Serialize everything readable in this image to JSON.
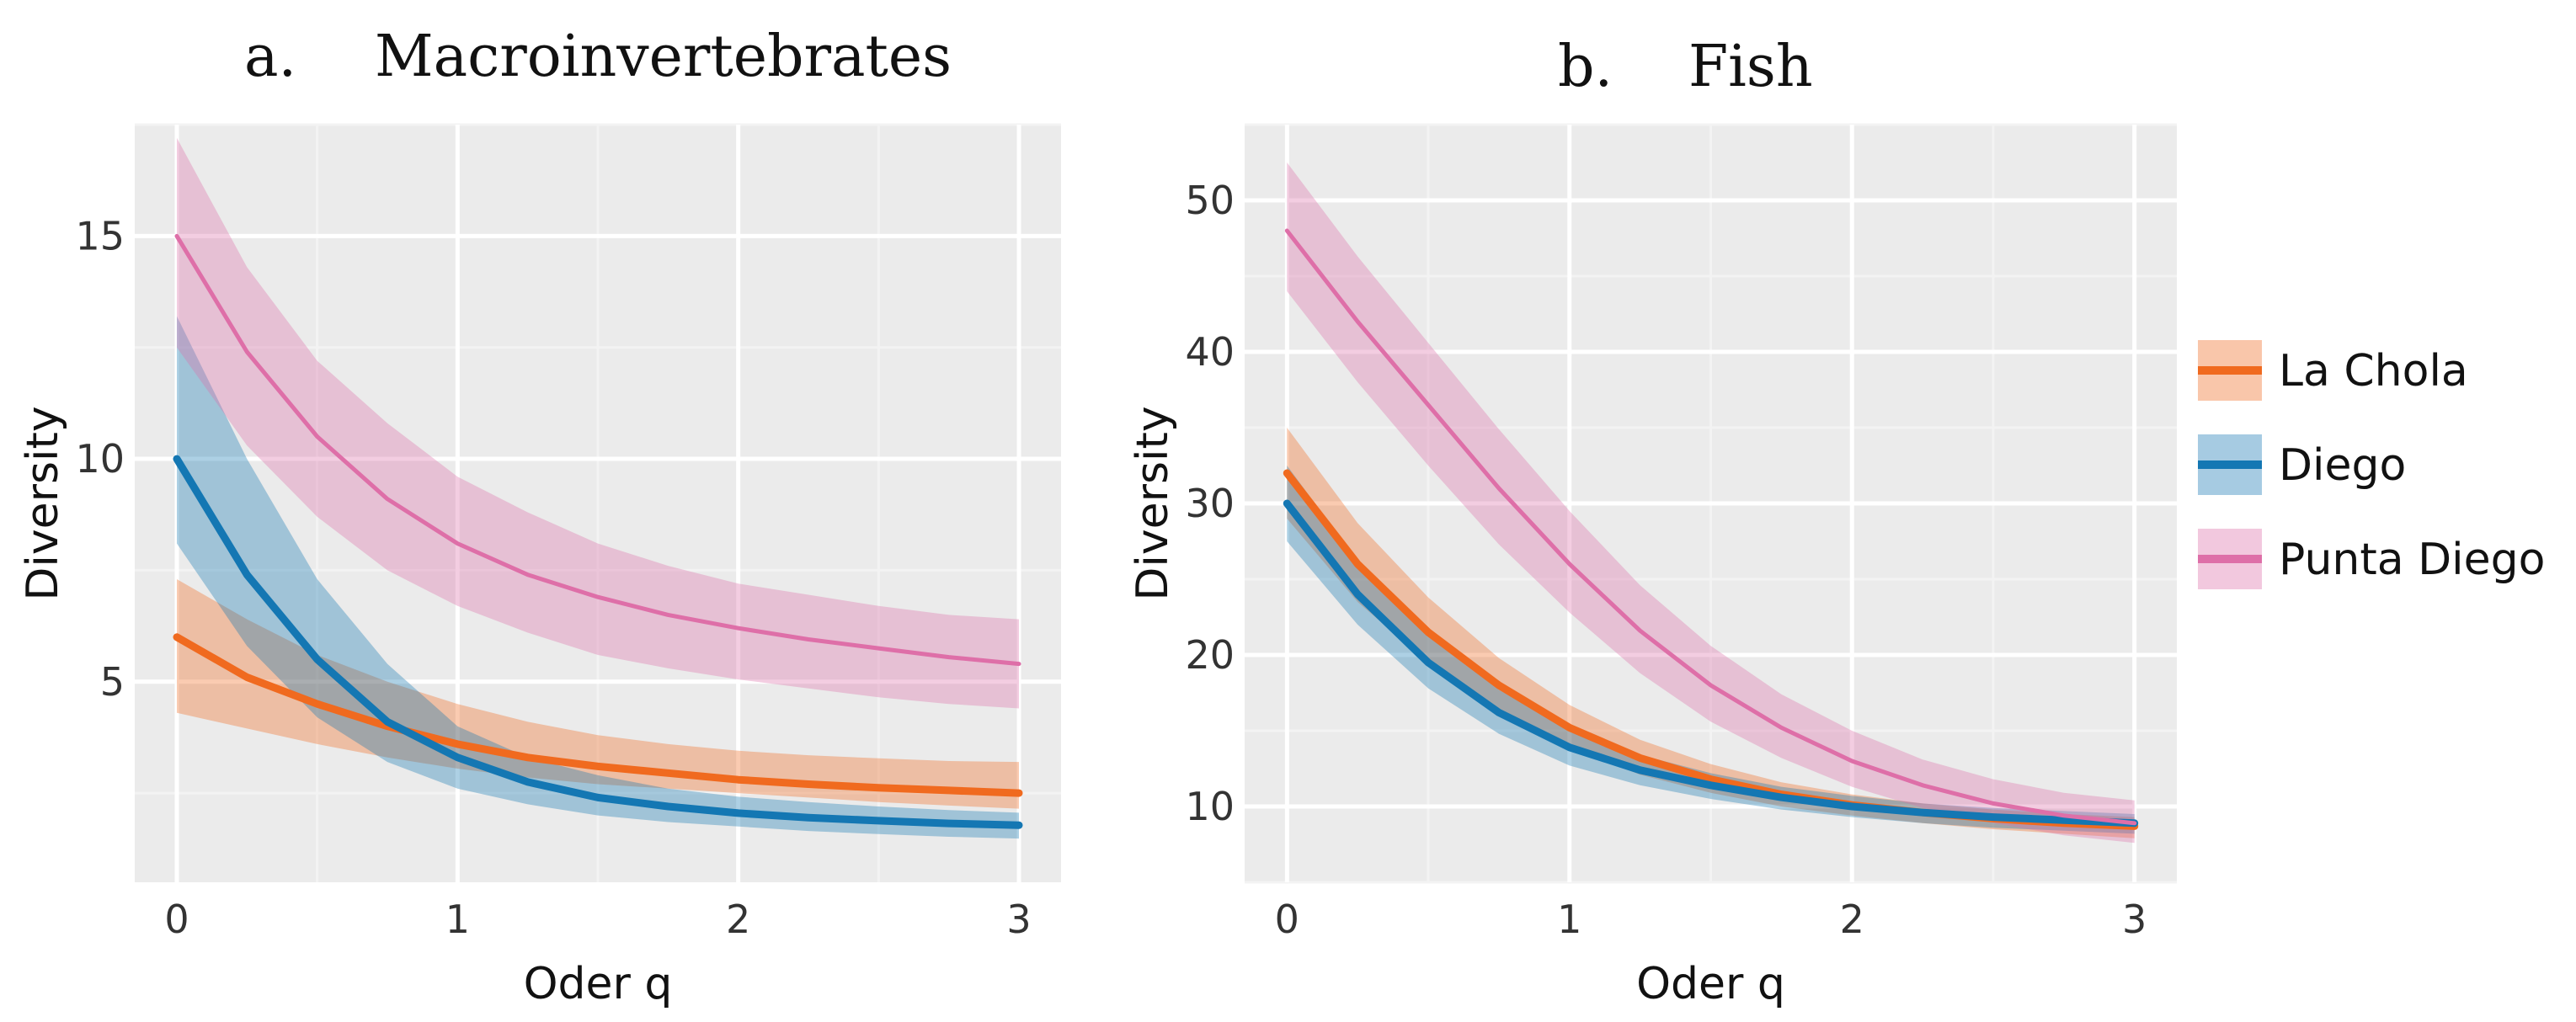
{
  "figure": {
    "layout": "two panels side by side with shared legend on right"
  },
  "colors": {
    "panel_bg": "#EBEBEB",
    "grid_major": "#FFFFFF",
    "grid_minor": "#F3F3F3",
    "La Chola": "#F06A1F",
    "Diego": "#1477B3",
    "Punta Diego": "#DE6FA8"
  },
  "legend": {
    "position": "right",
    "items": [
      {
        "name": "La Chola",
        "color": "#F06A1F"
      },
      {
        "name": "Diego",
        "color": "#1477B3"
      },
      {
        "name": "Punta Diego",
        "color": "#DE6FA8"
      }
    ]
  },
  "chart_data": [
    {
      "type": "line",
      "panel_letter": "a.",
      "title": "Macroinvertebrates",
      "xlabel": "Oder q",
      "ylabel": "Diversity",
      "xlim": [
        -0.15,
        3.15
      ],
      "ylim": [
        0.5,
        17.5
      ],
      "xticks": [
        0,
        1,
        2,
        3
      ],
      "yticks": [
        5,
        10,
        15
      ],
      "grid": true,
      "x": [
        0,
        0.25,
        0.5,
        0.75,
        1,
        1.25,
        1.5,
        1.75,
        2,
        2.25,
        2.5,
        2.75,
        3
      ],
      "series": [
        {
          "name": "La Chola",
          "values": [
            6.0,
            5.1,
            4.5,
            4.0,
            3.6,
            3.3,
            3.1,
            2.95,
            2.8,
            2.7,
            2.62,
            2.56,
            2.5
          ],
          "lower": [
            4.3,
            3.95,
            3.6,
            3.3,
            3.05,
            2.85,
            2.7,
            2.6,
            2.5,
            2.4,
            2.3,
            2.22,
            2.15
          ],
          "upper": [
            7.3,
            6.4,
            5.6,
            5.0,
            4.5,
            4.1,
            3.8,
            3.6,
            3.45,
            3.35,
            3.28,
            3.22,
            3.2
          ]
        },
        {
          "name": "Diego",
          "values": [
            10.0,
            7.4,
            5.5,
            4.1,
            3.3,
            2.75,
            2.4,
            2.2,
            2.05,
            1.95,
            1.88,
            1.82,
            1.78
          ],
          "lower": [
            8.1,
            5.8,
            4.2,
            3.2,
            2.6,
            2.25,
            2.0,
            1.85,
            1.75,
            1.65,
            1.58,
            1.52,
            1.48
          ],
          "upper": [
            13.2,
            10.0,
            7.3,
            5.4,
            4.0,
            3.3,
            2.9,
            2.6,
            2.42,
            2.3,
            2.2,
            2.12,
            2.06
          ]
        },
        {
          "name": "Punta Diego",
          "values": [
            15.0,
            12.4,
            10.5,
            9.1,
            8.1,
            7.4,
            6.9,
            6.5,
            6.2,
            5.95,
            5.75,
            5.55,
            5.4
          ],
          "lower": [
            12.5,
            10.3,
            8.7,
            7.5,
            6.7,
            6.1,
            5.6,
            5.3,
            5.05,
            4.85,
            4.65,
            4.5,
            4.4
          ],
          "upper": [
            17.2,
            14.3,
            12.2,
            10.8,
            9.6,
            8.8,
            8.1,
            7.6,
            7.2,
            6.95,
            6.7,
            6.5,
            6.4
          ]
        }
      ]
    },
    {
      "type": "line",
      "panel_letter": "b.",
      "title": "Fish",
      "xlabel": "Oder q",
      "ylabel": "Diversity",
      "xlim": [
        -0.15,
        3.15
      ],
      "ylim": [
        5,
        55
      ],
      "xticks": [
        0,
        1,
        2,
        3
      ],
      "yticks": [
        10,
        20,
        30,
        40,
        50
      ],
      "grid": true,
      "x": [
        0,
        0.25,
        0.5,
        0.75,
        1,
        1.25,
        1.5,
        1.75,
        2,
        2.25,
        2.5,
        2.75,
        3
      ],
      "series": [
        {
          "name": "La Chola",
          "values": [
            32.0,
            26.0,
            21.5,
            18.0,
            15.2,
            13.2,
            11.8,
            10.8,
            10.1,
            9.6,
            9.2,
            8.9,
            8.7
          ],
          "lower": [
            29.0,
            23.5,
            19.5,
            16.3,
            13.9,
            12.1,
            10.9,
            10.0,
            9.4,
            8.9,
            8.5,
            8.2,
            7.9
          ],
          "upper": [
            35.0,
            28.7,
            23.8,
            19.8,
            16.7,
            14.4,
            12.8,
            11.6,
            10.8,
            10.2,
            9.8,
            9.5,
            9.3
          ]
        },
        {
          "name": "Diego",
          "values": [
            30.0,
            24.0,
            19.5,
            16.2,
            13.9,
            12.4,
            11.4,
            10.6,
            10.0,
            9.6,
            9.3,
            9.1,
            8.9
          ],
          "lower": [
            27.5,
            22.0,
            17.8,
            14.8,
            12.7,
            11.4,
            10.5,
            9.8,
            9.3,
            8.9,
            8.6,
            8.4,
            8.2
          ],
          "upper": [
            32.5,
            26.2,
            21.3,
            17.7,
            15.1,
            13.4,
            12.2,
            11.3,
            10.7,
            10.2,
            9.9,
            9.7,
            9.5
          ]
        },
        {
          "name": "Punta Diego",
          "values": [
            48.0,
            42.0,
            36.5,
            31.0,
            26.0,
            21.6,
            18.0,
            15.2,
            13.0,
            11.4,
            10.2,
            9.4,
            8.9
          ],
          "lower": [
            44.0,
            38.0,
            32.5,
            27.3,
            22.8,
            18.8,
            15.6,
            13.2,
            11.3,
            9.9,
            8.9,
            8.1,
            7.6
          ],
          "upper": [
            52.5,
            46.3,
            40.6,
            34.9,
            29.5,
            24.6,
            20.6,
            17.4,
            15.0,
            13.1,
            11.8,
            10.9,
            10.4
          ]
        }
      ]
    }
  ]
}
